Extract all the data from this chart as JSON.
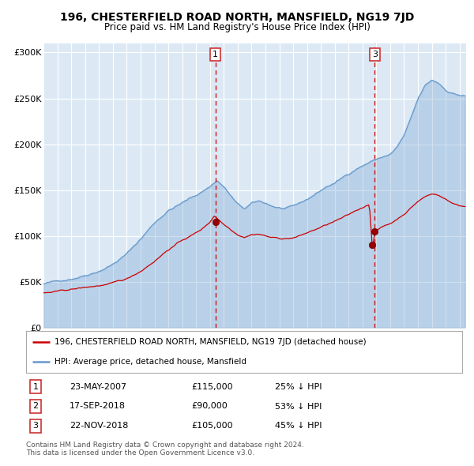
{
  "title": "196, CHESTERFIELD ROAD NORTH, MANSFIELD, NG19 7JD",
  "subtitle": "Price paid vs. HM Land Registry's House Price Index (HPI)",
  "legend_label_red": "196, CHESTERFIELD ROAD NORTH, MANSFIELD, NG19 7JD (detached house)",
  "legend_label_blue": "HPI: Average price, detached house, Mansfield",
  "footer_line1": "Contains HM Land Registry data © Crown copyright and database right 2024.",
  "footer_line2": "This data is licensed under the Open Government Licence v3.0.",
  "transactions": [
    {
      "num": 1,
      "date": "23-MAY-2007",
      "price": 115000,
      "pct": "25%",
      "dir": "↓"
    },
    {
      "num": 2,
      "date": "17-SEP-2018",
      "price": 90000,
      "pct": "53%",
      "dir": "↓"
    },
    {
      "num": 3,
      "date": "22-NOV-2018",
      "price": 105000,
      "pct": "45%",
      "dir": "↓"
    }
  ],
  "transaction_dates_decimal": [
    2007.388,
    2018.713,
    2018.894
  ],
  "transaction_prices": [
    115000,
    90000,
    105000
  ],
  "vline_dates": [
    2007.388,
    2018.894
  ],
  "vline_labels": [
    "1",
    "3"
  ],
  "background_color": "#ffffff",
  "plot_bg_color": "#dce9f5",
  "grid_color": "#ffffff",
  "red_color": "#cc0000",
  "blue_color": "#6699cc",
  "ylim": [
    0,
    310000
  ],
  "yticks": [
    0,
    50000,
    100000,
    150000,
    200000,
    250000,
    300000
  ],
  "xlim_start": 1995.0,
  "xlim_end": 2025.5,
  "hpi_keypoints": [
    [
      1995.0,
      48000
    ],
    [
      1996.0,
      50000
    ],
    [
      1997.0,
      54000
    ],
    [
      1998.0,
      59000
    ],
    [
      1999.0,
      65000
    ],
    [
      2000.0,
      73000
    ],
    [
      2001.0,
      84000
    ],
    [
      2002.0,
      100000
    ],
    [
      2003.0,
      118000
    ],
    [
      2004.0,
      132000
    ],
    [
      2005.0,
      140000
    ],
    [
      2006.0,
      148000
    ],
    [
      2007.0,
      158000
    ],
    [
      2007.5,
      165000
    ],
    [
      2008.0,
      158000
    ],
    [
      2008.5,
      148000
    ],
    [
      2009.0,
      138000
    ],
    [
      2009.5,
      133000
    ],
    [
      2010.0,
      138000
    ],
    [
      2010.5,
      140000
    ],
    [
      2011.0,
      138000
    ],
    [
      2011.5,
      135000
    ],
    [
      2012.0,
      133000
    ],
    [
      2012.5,
      132000
    ],
    [
      2013.0,
      133000
    ],
    [
      2013.5,
      136000
    ],
    [
      2014.0,
      140000
    ],
    [
      2014.5,
      145000
    ],
    [
      2015.0,
      150000
    ],
    [
      2015.5,
      155000
    ],
    [
      2016.0,
      158000
    ],
    [
      2016.5,
      163000
    ],
    [
      2017.0,
      168000
    ],
    [
      2017.5,
      174000
    ],
    [
      2018.0,
      178000
    ],
    [
      2018.5,
      182000
    ],
    [
      2019.0,
      185000
    ],
    [
      2019.5,
      188000
    ],
    [
      2020.0,
      190000
    ],
    [
      2020.5,
      198000
    ],
    [
      2021.0,
      210000
    ],
    [
      2021.5,
      228000
    ],
    [
      2022.0,
      248000
    ],
    [
      2022.5,
      262000
    ],
    [
      2023.0,
      268000
    ],
    [
      2023.5,
      265000
    ],
    [
      2024.0,
      258000
    ],
    [
      2024.5,
      255000
    ],
    [
      2025.0,
      253000
    ],
    [
      2025.4,
      252000
    ]
  ],
  "red_keypoints": [
    [
      1995.0,
      38000
    ],
    [
      1996.0,
      39000
    ],
    [
      1997.0,
      41000
    ],
    [
      1998.0,
      43000
    ],
    [
      1999.0,
      45000
    ],
    [
      2000.0,
      47000
    ],
    [
      2001.0,
      51000
    ],
    [
      2002.0,
      60000
    ],
    [
      2003.0,
      72000
    ],
    [
      2004.0,
      85000
    ],
    [
      2005.0,
      95000
    ],
    [
      2006.0,
      103000
    ],
    [
      2006.5,
      108000
    ],
    [
      2007.0,
      115000
    ],
    [
      2007.3,
      122000
    ],
    [
      2007.5,
      120000
    ],
    [
      2008.0,
      113000
    ],
    [
      2008.5,
      108000
    ],
    [
      2009.0,
      103000
    ],
    [
      2009.5,
      101000
    ],
    [
      2010.0,
      104000
    ],
    [
      2010.5,
      105000
    ],
    [
      2011.0,
      103000
    ],
    [
      2011.5,
      101000
    ],
    [
      2012.0,
      100000
    ],
    [
      2012.5,
      100000
    ],
    [
      2013.0,
      101000
    ],
    [
      2013.5,
      103000
    ],
    [
      2014.0,
      106000
    ],
    [
      2014.5,
      109000
    ],
    [
      2015.0,
      112000
    ],
    [
      2015.5,
      115000
    ],
    [
      2016.0,
      118000
    ],
    [
      2016.5,
      121000
    ],
    [
      2017.0,
      124000
    ],
    [
      2017.5,
      128000
    ],
    [
      2018.0,
      132000
    ],
    [
      2018.5,
      136000
    ],
    [
      2018.713,
      90000
    ],
    [
      2018.894,
      105000
    ],
    [
      2019.0,
      108000
    ],
    [
      2019.5,
      112000
    ],
    [
      2020.0,
      115000
    ],
    [
      2020.5,
      120000
    ],
    [
      2021.0,
      126000
    ],
    [
      2021.5,
      133000
    ],
    [
      2022.0,
      140000
    ],
    [
      2022.5,
      145000
    ],
    [
      2023.0,
      148000
    ],
    [
      2023.5,
      147000
    ],
    [
      2024.0,
      143000
    ],
    [
      2024.5,
      138000
    ],
    [
      2025.0,
      136000
    ],
    [
      2025.4,
      135000
    ]
  ]
}
